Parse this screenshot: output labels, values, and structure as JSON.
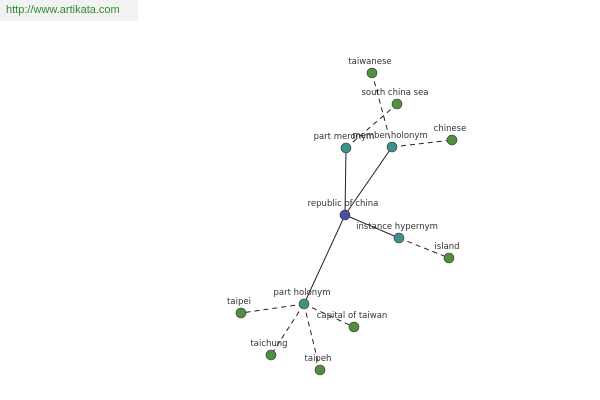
{
  "header": {
    "url": "http://www.artikata.com"
  },
  "nodes": [
    {
      "label": "republic of china"
    },
    {
      "label": "part meronym"
    },
    {
      "label": "member holonym"
    },
    {
      "label": "instance hypernym"
    },
    {
      "label": "part holonym"
    },
    {
      "label": "taiwanese"
    },
    {
      "label": "south china sea"
    },
    {
      "label": "chinese"
    },
    {
      "label": "island"
    },
    {
      "label": "taipei"
    },
    {
      "label": "capital of taiwan"
    },
    {
      "label": "taichung"
    },
    {
      "label": "taipeh"
    }
  ]
}
